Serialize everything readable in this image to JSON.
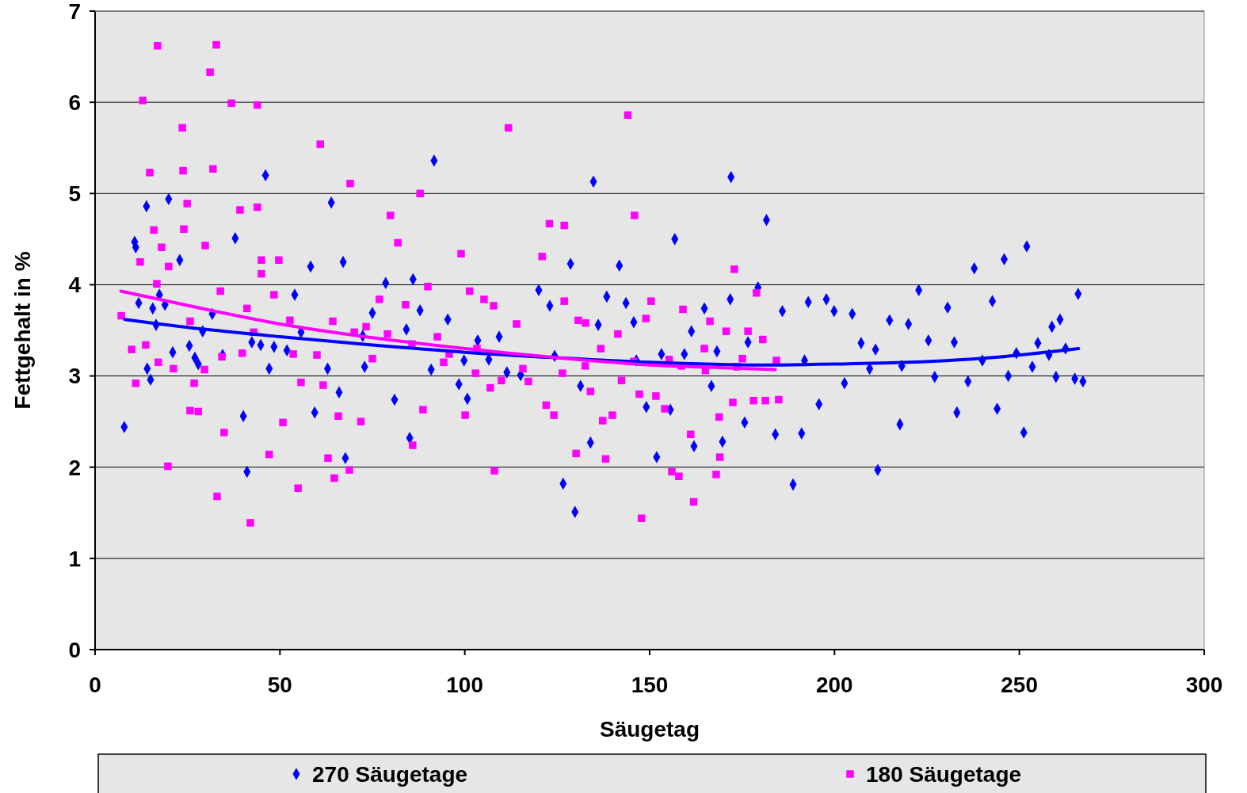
{
  "chart_data": {
    "type": "scatter",
    "xlabel": "Säugetag",
    "ylabel": "Fettgehalt in %",
    "xlim": [
      0,
      300
    ],
    "xticks": [
      0,
      50,
      100,
      150,
      200,
      250,
      300
    ],
    "ylim": [
      0,
      7
    ],
    "yticks": [
      0,
      1,
      2,
      3,
      4,
      5,
      6,
      7
    ],
    "grid": "y",
    "legend": "bottom",
    "series": [
      {
        "name": "270 Säugetage",
        "marker": "diamond",
        "color": "#0000ff",
        "x": [
          7.9,
          10.7,
          11,
          11.8,
          13.9,
          14.1,
          15,
          15.6,
          16.5,
          17.4,
          18.9,
          19.9,
          21,
          22.9,
          25.5,
          27,
          29.1,
          31.7,
          34.5,
          37.9,
          40.1,
          41.1,
          42.4,
          44.8,
          46.1,
          48.4,
          51.9,
          54,
          58.3,
          59.4,
          63.9,
          66,
          67.1,
          67.7,
          72.4,
          75,
          78.6,
          81,
          85.1,
          86,
          87.9,
          91.7,
          95.4,
          98.4,
          100.7,
          103.5,
          106.5,
          109.3,
          115.1,
          120,
          123,
          126.6,
          128.6,
          129.8,
          134,
          134.8,
          138.4,
          141.8,
          143.6,
          146.4,
          149.1,
          151.9,
          155.6,
          156.8,
          159.4,
          162,
          164.8,
          166.7,
          169.7,
          171.8,
          172,
          175.7,
          179.3,
          181.6,
          184,
          185.9,
          188.8,
          191.1,
          192.9,
          195.8,
          197.8,
          199.9,
          202.7,
          204.8,
          207.2,
          209.5,
          211.7,
          214.9,
          217.7,
          220,
          222.8,
          225.4,
          227.1,
          230.6,
          233.1,
          236.1,
          237.8,
          240,
          242.7,
          244,
          245.9,
          247,
          249.2,
          251.2,
          252,
          253.5,
          255,
          258,
          258.8,
          259.9,
          261,
          262.5,
          265,
          265.9,
          267.2,
          27.9,
          47.1,
          55.7,
          62.9,
          72.9,
          84.2,
          90.9,
          99.8,
          111.4,
          124.3,
          131.3,
          136.1,
          145.7,
          153.2,
          161.3,
          168.2,
          176.6,
          191.9,
          211.1,
          218.2,
          232.4
        ],
        "values": [
          2.44,
          4.47,
          4.41,
          3.8,
          4.86,
          3.08,
          2.96,
          3.74,
          3.56,
          3.89,
          3.78,
          4.94,
          3.26,
          4.27,
          3.33,
          3.2,
          3.49,
          3.68,
          3.23,
          4.51,
          2.56,
          1.95,
          3.37,
          3.34,
          5.2,
          3.32,
          3.28,
          3.89,
          4.2,
          2.6,
          4.9,
          2.82,
          4.25,
          2.1,
          3.44,
          3.69,
          4.02,
          2.74,
          2.32,
          4.06,
          3.72,
          5.36,
          3.62,
          2.91,
          2.75,
          3.39,
          3.18,
          3.43,
          3.01,
          3.94,
          3.77,
          1.82,
          4.23,
          1.51,
          2.27,
          5.13,
          3.87,
          4.21,
          3.8,
          3.17,
          2.66,
          2.11,
          2.63,
          4.5,
          3.24,
          2.23,
          3.74,
          2.89,
          2.28,
          3.84,
          5.18,
          2.49,
          3.97,
          4.71,
          2.36,
          3.71,
          1.81,
          2.37,
          3.81,
          2.69,
          3.84,
          3.71,
          2.92,
          3.68,
          3.36,
          3.08,
          1.97,
          3.61,
          2.47,
          3.57,
          3.94,
          3.39,
          2.99,
          3.75,
          2.6,
          2.94,
          4.18,
          3.17,
          3.82,
          2.64,
          4.28,
          3,
          3.25,
          2.38,
          4.42,
          3.1,
          3.36,
          3.23,
          3.54,
          2.99,
          3.62,
          3.3,
          2.97,
          3.9,
          2.94,
          3.13,
          3.08,
          3.48,
          3.08,
          3.1,
          3.51,
          3.07,
          3.17,
          3.04,
          3.22,
          2.89,
          3.56,
          3.59,
          3.24,
          3.49,
          3.27,
          3.37,
          3.17,
          3.29,
          3.11,
          3.37
        ]
      },
      {
        "name": "180 Säugetage",
        "marker": "square",
        "color": "#ff00ff",
        "x": [
          7.1,
          9.9,
          11,
          12.2,
          12.9,
          13.7,
          14.8,
          15.9,
          16.7,
          16.9,
          18,
          19.7,
          19.9,
          21.2,
          23.6,
          23.8,
          24,
          24.9,
          25.7,
          26.8,
          27.9,
          29.6,
          29.8,
          31.1,
          31.9,
          32.8,
          33,
          33.9,
          34.9,
          36.9,
          39.2,
          39.8,
          41.1,
          42,
          43.9,
          43.9,
          45,
          45,
          47.1,
          48.4,
          49.7,
          50.8,
          52.7,
          54.9,
          55.7,
          60,
          60.9,
          61.7,
          63,
          64.7,
          65.8,
          68.8,
          69,
          70.1,
          71.9,
          73.3,
          76.9,
          79.1,
          79.9,
          81.9,
          84,
          85.9,
          87.9,
          88.7,
          90,
          92.6,
          95.8,
          99,
          100.1,
          101.3,
          103.3,
          105.2,
          106.9,
          107.8,
          108,
          109.9,
          111.8,
          114,
          117.2,
          120.9,
          122,
          122.9,
          124.1,
          126.9,
          126.9,
          130.1,
          130.7,
          132.7,
          134,
          136.8,
          137.3,
          138.1,
          139.9,
          142.4,
          144.1,
          145.9,
          147.2,
          147.8,
          149,
          150.4,
          151.7,
          154.1,
          155.3,
          156,
          157.9,
          159,
          161.1,
          161.9,
          164.8,
          166.3,
          168,
          168.8,
          169,
          170.7,
          172.5,
          172.9,
          175.1,
          176.6,
          178.1,
          178.9,
          180.6,
          181.3,
          184.3,
          184.9,
          17.1,
          25.7,
          34.3,
          42.9,
          53.6,
          64.3,
          75,
          85.7,
          94.3,
          102.9,
          115.7,
          126.4,
          132.6,
          141.4,
          145.7,
          158.6,
          165.1,
          173.6
        ],
        "values": [
          3.66,
          3.29,
          2.92,
          4.25,
          6.02,
          3.34,
          5.23,
          4.6,
          4.01,
          6.62,
          4.41,
          2.01,
          4.2,
          3.08,
          5.72,
          5.25,
          4.61,
          4.89,
          2.62,
          2.92,
          2.61,
          3.07,
          4.43,
          6.33,
          5.27,
          6.63,
          1.68,
          3.93,
          2.38,
          5.99,
          4.82,
          3.25,
          3.74,
          1.39,
          4.85,
          5.97,
          4.27,
          4.12,
          2.14,
          3.89,
          4.27,
          2.49,
          3.61,
          1.77,
          2.93,
          3.23,
          5.54,
          2.9,
          2.1,
          1.88,
          2.56,
          1.97,
          5.11,
          3.48,
          2.5,
          3.54,
          3.84,
          3.46,
          4.76,
          4.46,
          3.78,
          2.24,
          5,
          2.63,
          3.98,
          3.43,
          3.24,
          4.34,
          2.57,
          3.93,
          3.3,
          3.84,
          2.87,
          3.77,
          1.96,
          2.95,
          5.72,
          3.57,
          2.94,
          4.31,
          2.68,
          4.67,
          2.57,
          4.65,
          3.82,
          2.15,
          3.61,
          3.58,
          2.83,
          3.3,
          2.51,
          2.09,
          2.57,
          2.95,
          5.86,
          4.76,
          2.8,
          1.44,
          3.63,
          3.82,
          2.78,
          2.64,
          3.18,
          1.95,
          1.9,
          3.73,
          2.36,
          1.62,
          3.3,
          3.6,
          1.92,
          2.55,
          2.11,
          3.49,
          2.71,
          4.17,
          3.19,
          3.49,
          2.73,
          3.91,
          3.4,
          2.73,
          3.17,
          2.74,
          3.15,
          3.6,
          3.21,
          3.48,
          3.24,
          3.6,
          3.19,
          3.35,
          3.15,
          3.03,
          3.08,
          3.03,
          3.11,
          3.46,
          3.16,
          3.11,
          3.06,
          3.1
        ]
      },
      {
        "type": "line",
        "color": "#0000ff",
        "x": [
          8,
          30,
          50,
          75,
          100,
          125,
          150,
          180,
          200,
          220,
          245,
          266
        ],
        "values": [
          3.62,
          3.51,
          3.43,
          3.34,
          3.26,
          3.2,
          3.15,
          3.12,
          3.13,
          3.15,
          3.21,
          3.3
        ]
      },
      {
        "type": "line",
        "color": "#ff00ff",
        "x": [
          7,
          30,
          50,
          75,
          100,
          125,
          150,
          170,
          184
        ],
        "values": [
          3.93,
          3.73,
          3.57,
          3.42,
          3.3,
          3.2,
          3.12,
          3.09,
          3.07
        ]
      }
    ]
  }
}
